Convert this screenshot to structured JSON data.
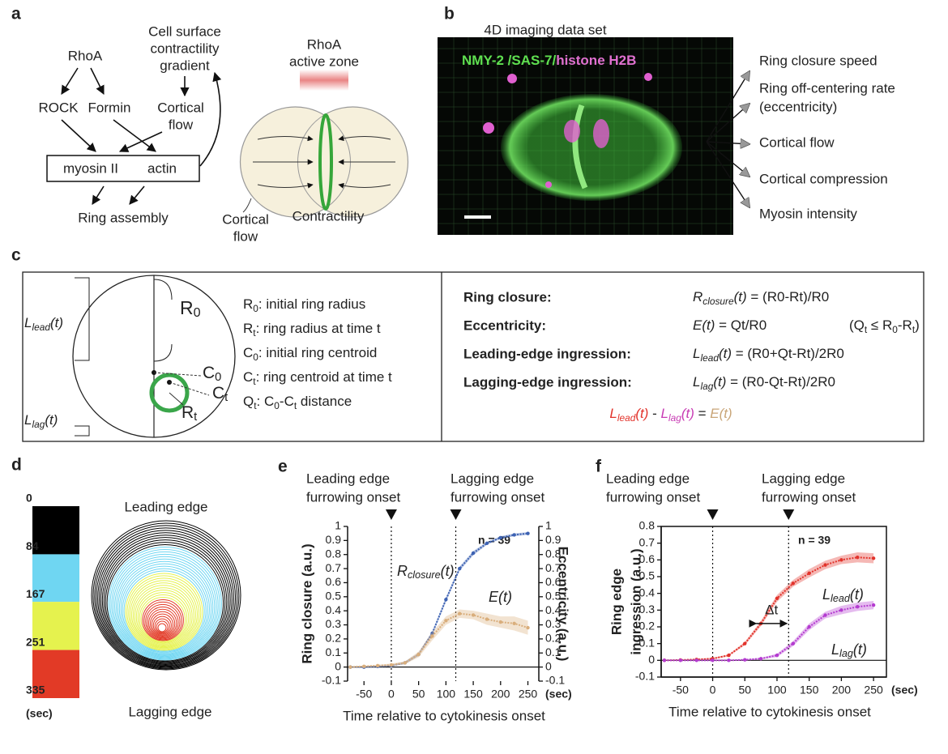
{
  "panel_labels": [
    "a",
    "b",
    "c",
    "d",
    "e",
    "f"
  ],
  "panel_a": {
    "rhoa": "RhoA",
    "rock": "ROCK",
    "formin": "Formin",
    "gradient": [
      "Cell surface",
      "contractility",
      "gradient"
    ],
    "cortical_flow_top": [
      "Cortical",
      "flow"
    ],
    "myosin": "myosin II",
    "actin": "actin",
    "ring_assembly": "Ring assembly",
    "active_zone": [
      "RhoA",
      "active zone"
    ],
    "cortical_flow_bottom": [
      "Cortical",
      "flow"
    ],
    "contractility": "Contractility"
  },
  "panel_b": {
    "title": "4D imaging data set",
    "stain": [
      "NMY-2 /SAS-7/",
      "histone H2B"
    ],
    "outputs": [
      [
        "Ring closure speed"
      ],
      [
        "Ring off-centering rate",
        "(eccentricity)"
      ],
      [
        "Cortical flow"
      ],
      [
        "Cortical compression"
      ],
      [
        "Myosin intensity"
      ]
    ]
  },
  "panel_c": {
    "l_lead": [
      {
        "i": "L"
      },
      {
        "isub": "lead"
      },
      {
        "i": "(t)"
      }
    ],
    "l_lag": [
      {
        "i": "L"
      },
      {
        "isub": "lag"
      },
      {
        "i": "(t)"
      }
    ],
    "r0_label": [
      "R",
      {
        "sub": "0"
      }
    ],
    "c0_label": [
      "C",
      {
        "sub": "0"
      }
    ],
    "ct_label": [
      "C",
      {
        "sub": "t"
      }
    ],
    "rt_label": [
      "R",
      {
        "sub": "t"
      }
    ],
    "definitions": [
      [
        "R",
        {
          "sub": "0"
        },
        ": initial ring radius"
      ],
      [
        "R",
        {
          "sub": "t"
        },
        ": ring radius at time t"
      ],
      [
        "C",
        {
          "sub": "0"
        },
        ": initial ring centroid"
      ],
      [
        "C",
        {
          "sub": "t"
        },
        ": ring centroid at time t"
      ],
      [
        "Q",
        {
          "sub": "t"
        },
        ": C",
        {
          "sub": "0"
        },
        "-C",
        {
          "sub": "t"
        },
        " distance"
      ]
    ],
    "equations": [
      {
        "name": "Ring closure:",
        "color": "#3d62b3",
        "formula": [
          {
            "i": "R"
          },
          {
            "isub": "closure"
          },
          {
            "i": "(t)"
          },
          " = (R0-Rt)/R0"
        ]
      },
      {
        "name": "Eccentricity:",
        "color": "#c9a679",
        "formula": [
          {
            "i": "E(t)"
          },
          " = Qt/R0"
        ],
        "note": [
          "(Q",
          {
            "sub": "t"
          },
          " ≤ R",
          {
            "sub": "0"
          },
          "-R",
          {
            "sub": "t"
          },
          ")"
        ]
      },
      {
        "name": "Leading-edge ingression:",
        "color": "#e2332b",
        "formula": [
          {
            "i": "L"
          },
          {
            "isub": "lead"
          },
          {
            "i": "(t)"
          },
          " = (R0+Qt-Rt)/2R0"
        ]
      },
      {
        "name": "Lagging-edge ingression:",
        "color": "#c83cb4",
        "formula": [
          {
            "i": "L"
          },
          {
            "isub": "lag"
          },
          {
            "i": "(t)"
          },
          " = (R0-Qt-Rt)/2R0"
        ]
      }
    ],
    "relation": [
      {
        "i": "L",
        "c": "#e2332b"
      },
      {
        "isub": "lead",
        "c": "#e2332b"
      },
      {
        "i": "(t)",
        "c": "#e2332b"
      },
      " - ",
      {
        "i": "L",
        "c": "#c83cb4"
      },
      {
        "isub": "lag",
        "c": "#c83cb4"
      },
      {
        "i": "(t)",
        "c": "#c83cb4"
      },
      " = ",
      {
        "i": "E(t)",
        "c": "#c9a679"
      }
    ]
  },
  "panel_d": {
    "colorbar": {
      "ticks": [
        0,
        84,
        167,
        251,
        335
      ],
      "colors": [
        "#000000",
        "#6fd6f2",
        "#e5f24e",
        "#e23a26"
      ],
      "unit": "(sec)"
    },
    "leading_edge": "Leading edge",
    "lagging_edge": "Lagging edge"
  },
  "chart_data": [
    {
      "type": "line",
      "onset_labels": [
        [
          "Leading edge",
          "furrowing onset"
        ],
        [
          "Lagging edge",
          "furrowing onset"
        ]
      ],
      "vlines": [
        0,
        118
      ],
      "n_label": "n = 39",
      "x": [
        -75,
        -50,
        -25,
        0,
        25,
        50,
        75,
        100,
        125,
        150,
        175,
        200,
        225,
        250
      ],
      "xlim": [
        -80,
        270
      ],
      "xticks": [
        -50,
        0,
        50,
        100,
        150,
        200,
        250
      ],
      "x_unit": "(sec)",
      "xlabel": "Time relative to cytokinesis onset",
      "ylabel": [
        "Ring closure (a.u.)"
      ],
      "y2label": "Eccentricity (a.u.)",
      "ylim": [
        -0.1,
        1
      ],
      "yticks": [
        -0.1,
        0,
        0.1,
        0.2,
        0.3,
        0.4,
        0.5,
        0.6,
        0.7,
        0.8,
        0.9,
        1
      ],
      "y2lim": [
        -0.1,
        1
      ],
      "y2ticks": [
        -0.1,
        0,
        0.1,
        0.2,
        0.3,
        0.4,
        0.5,
        0.6,
        0.7,
        0.8,
        0.9,
        1
      ],
      "series": [
        {
          "name": [
            {
              "i": "R"
            },
            {
              "isub": "closure"
            },
            {
              "i": "(t)"
            }
          ],
          "color": "#3d62b3",
          "values": [
            0,
            0,
            0.005,
            0.01,
            0.03,
            0.09,
            0.24,
            0.48,
            0.7,
            0.81,
            0.88,
            0.92,
            0.94,
            0.95
          ],
          "errors": [
            0.005,
            0.005,
            0.005,
            0.005,
            0.01,
            0.01,
            0.015,
            0.015,
            0.015,
            0.015,
            0.01,
            0.01,
            0.01,
            0.01
          ]
        },
        {
          "name": [
            {
              "i": "E(t)"
            }
          ],
          "axis": "y2",
          "color": "#d9ae7c",
          "values": [
            0,
            0.005,
            0.01,
            0.015,
            0.03,
            0.09,
            0.22,
            0.33,
            0.38,
            0.37,
            0.34,
            0.32,
            0.31,
            0.28
          ],
          "errors": [
            0.005,
            0.005,
            0.005,
            0.01,
            0.01,
            0.02,
            0.03,
            0.03,
            0.03,
            0.03,
            0.04,
            0.04,
            0.05,
            0.05
          ]
        }
      ]
    },
    {
      "type": "line",
      "onset_labels": [
        [
          "Leading edge",
          "furrowing onset"
        ],
        [
          "Lagging edge",
          "furrowing onset"
        ]
      ],
      "vlines": [
        0,
        118
      ],
      "n_label": "n = 39",
      "x": [
        -75,
        -50,
        -25,
        0,
        25,
        50,
        75,
        100,
        125,
        150,
        175,
        200,
        225,
        250
      ],
      "xlim": [
        -80,
        270
      ],
      "xticks": [
        -50,
        0,
        50,
        100,
        150,
        200,
        250
      ],
      "x_unit": "(sec)",
      "xlabel": "Time relative to cytokinesis onset",
      "ylabel": [
        "Ring edge",
        "ingression (a.u.)"
      ],
      "ylim": [
        -0.1,
        0.8
      ],
      "yticks": [
        -0.1,
        0,
        0.1,
        0.2,
        0.3,
        0.4,
        0.5,
        0.6,
        0.7,
        0.8
      ],
      "delta_t": {
        "label": "Δt",
        "x": [
          65,
          118
        ],
        "y": 0.22
      },
      "series": [
        {
          "name": [
            {
              "i": "L"
            },
            {
              "isub": "lead"
            },
            {
              "i": "(t)"
            }
          ],
          "color": "#e2332b",
          "values": [
            0,
            0.002,
            0.005,
            0.01,
            0.03,
            0.1,
            0.22,
            0.37,
            0.46,
            0.52,
            0.57,
            0.6,
            0.615,
            0.61
          ],
          "errors": [
            0.003,
            0.003,
            0.003,
            0.005,
            0.005,
            0.01,
            0.015,
            0.02,
            0.02,
            0.025,
            0.025,
            0.025,
            0.03,
            0.03
          ]
        },
        {
          "name": [
            {
              "i": "L"
            },
            {
              "isub": "lag"
            },
            {
              "i": "(t)"
            }
          ],
          "color": "#b43bd0",
          "values": [
            0,
            0,
            0,
            0,
            0,
            0.003,
            0.01,
            0.03,
            0.1,
            0.2,
            0.27,
            0.3,
            0.32,
            0.33
          ],
          "errors": [
            0.002,
            0.002,
            0.002,
            0.002,
            0.003,
            0.003,
            0.005,
            0.01,
            0.015,
            0.02,
            0.02,
            0.025,
            0.025,
            0.025
          ]
        }
      ]
    }
  ]
}
